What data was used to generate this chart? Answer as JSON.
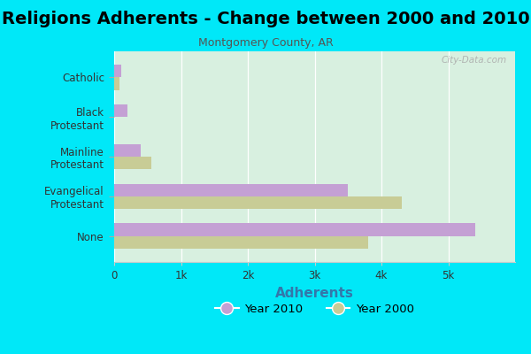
{
  "title": "Religions Adherents - Change between 2000 and 2010",
  "subtitle": "Montgomery County, AR",
  "xlabel": "Adherents",
  "categories": [
    "Catholic",
    "Black\nProtestant",
    "Mainline\nProtestant",
    "Evangelical\nProtestant",
    "None"
  ],
  "values_2010": [
    100,
    200,
    400,
    3500,
    5400
  ],
  "values_2000": [
    75,
    0,
    550,
    4300,
    3800
  ],
  "color_2010": "#c4a0d4",
  "color_2000": "#c8cc96",
  "background_outer": "#00e8f8",
  "background_inner_color": "#d8f0e0",
  "xlim": [
    0,
    6000
  ],
  "xticks": [
    0,
    1000,
    2000,
    3000,
    4000,
    5000
  ],
  "xticklabels": [
    "0",
    "1k",
    "2k",
    "3k",
    "4k",
    "5k"
  ],
  "watermark": "City-Data.com",
  "legend_2010": "Year 2010",
  "legend_2000": "Year 2000",
  "title_fontsize": 14,
  "subtitle_fontsize": 9,
  "xlabel_fontsize": 11,
  "bar_height": 0.32,
  "xlabel_color": "#3377aa"
}
